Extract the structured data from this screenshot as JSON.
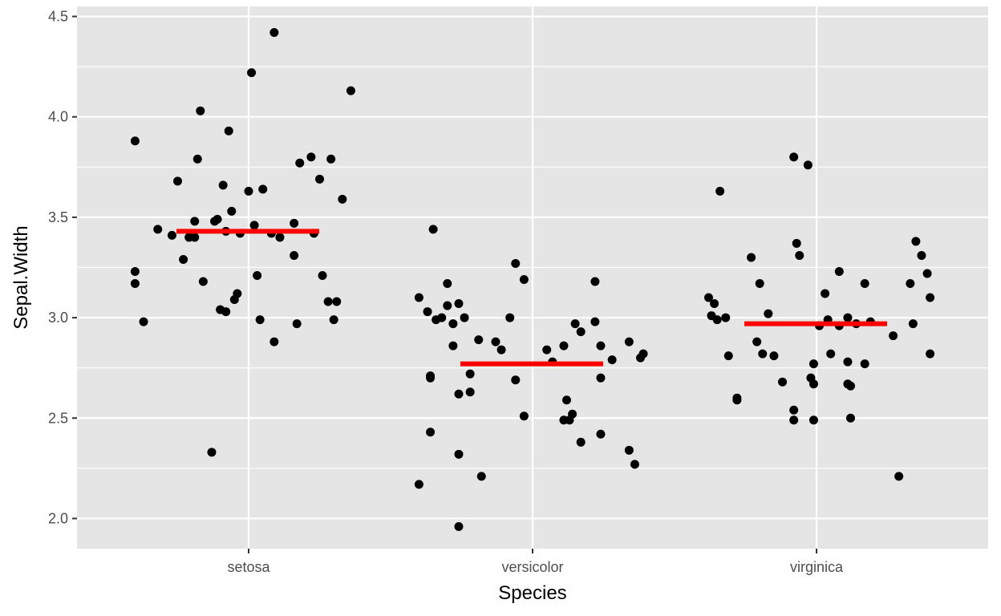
{
  "chart_data": {
    "type": "scatter",
    "title": "",
    "xlabel": "Species",
    "ylabel": "Sepal.Width",
    "categories": [
      "setosa",
      "versicolor",
      "virginica"
    ],
    "ylim": [
      1.85,
      4.55
    ],
    "yticks": [
      "2.0",
      "2.5",
      "3.0",
      "3.5",
      "4.0",
      "4.5"
    ],
    "ytick_values": [
      2.0,
      2.5,
      3.0,
      3.5,
      4.0,
      4.5
    ],
    "grid": true,
    "legend": "none",
    "colors": {
      "panel": "#e5e5e5",
      "grid": "#ffffff",
      "points": "#000000",
      "mean_line": "#ff0000"
    },
    "series": [
      {
        "category": "setosa",
        "mean": 3.43,
        "points": [
          [
            -0.4,
            3.88
          ],
          [
            -0.4,
            3.23
          ],
          [
            -0.4,
            3.17
          ],
          [
            -0.37,
            2.98
          ],
          [
            -0.32,
            3.44
          ],
          [
            -0.27,
            3.41
          ],
          [
            -0.25,
            3.68
          ],
          [
            -0.23,
            3.29
          ],
          [
            -0.21,
            3.4
          ],
          [
            -0.19,
            3.4
          ],
          [
            -0.19,
            3.48
          ],
          [
            -0.18,
            3.79
          ],
          [
            -0.17,
            4.03
          ],
          [
            -0.16,
            3.18
          ],
          [
            -0.13,
            2.33
          ],
          [
            -0.12,
            3.48
          ],
          [
            -0.11,
            3.49
          ],
          [
            -0.1,
            3.04
          ],
          [
            -0.09,
            3.66
          ],
          [
            -0.08,
            3.03
          ],
          [
            -0.08,
            3.43
          ],
          [
            -0.07,
            3.93
          ],
          [
            -0.06,
            3.53
          ],
          [
            -0.05,
            3.09
          ],
          [
            -0.04,
            3.12
          ],
          [
            -0.03,
            3.42
          ],
          [
            0.0,
            3.63
          ],
          [
            0.01,
            4.22
          ],
          [
            0.02,
            3.46
          ],
          [
            0.03,
            3.21
          ],
          [
            0.04,
            2.99
          ],
          [
            0.05,
            3.64
          ],
          [
            0.08,
            3.42
          ],
          [
            0.09,
            4.42
          ],
          [
            0.09,
            2.88
          ],
          [
            0.11,
            3.4
          ],
          [
            0.16,
            3.47
          ],
          [
            0.16,
            3.31
          ],
          [
            0.17,
            2.97
          ],
          [
            0.18,
            3.77
          ],
          [
            0.22,
            3.8
          ],
          [
            0.23,
            3.42
          ],
          [
            0.25,
            3.69
          ],
          [
            0.26,
            3.21
          ],
          [
            0.28,
            3.08
          ],
          [
            0.29,
            3.79
          ],
          [
            0.3,
            2.99
          ],
          [
            0.31,
            3.08
          ],
          [
            0.33,
            3.59
          ],
          [
            0.36,
            4.13
          ]
        ]
      },
      {
        "category": "versicolor",
        "mean": 2.77,
        "points": [
          [
            -0.4,
            2.17
          ],
          [
            -0.4,
            3.1
          ],
          [
            -0.37,
            3.03
          ],
          [
            -0.36,
            2.71
          ],
          [
            -0.36,
            2.7
          ],
          [
            -0.36,
            2.43
          ],
          [
            -0.35,
            3.44
          ],
          [
            -0.34,
            2.99
          ],
          [
            -0.32,
            3.0
          ],
          [
            -0.3,
            3.17
          ],
          [
            -0.3,
            3.06
          ],
          [
            -0.28,
            2.97
          ],
          [
            -0.28,
            2.86
          ],
          [
            -0.26,
            2.32
          ],
          [
            -0.26,
            3.07
          ],
          [
            -0.26,
            2.62
          ],
          [
            -0.26,
            1.96
          ],
          [
            -0.24,
            3.0
          ],
          [
            -0.22,
            2.72
          ],
          [
            -0.22,
            2.63
          ],
          [
            -0.19,
            2.89
          ],
          [
            -0.18,
            2.21
          ],
          [
            -0.13,
            2.88
          ],
          [
            -0.11,
            2.84
          ],
          [
            -0.08,
            3.0
          ],
          [
            -0.06,
            3.27
          ],
          [
            -0.06,
            2.69
          ],
          [
            -0.03,
            3.19
          ],
          [
            -0.03,
            2.51
          ],
          [
            0.05,
            2.84
          ],
          [
            0.07,
            2.78
          ],
          [
            0.11,
            2.49
          ],
          [
            0.11,
            2.86
          ],
          [
            0.12,
            2.59
          ],
          [
            0.13,
            2.49
          ],
          [
            0.14,
            2.52
          ],
          [
            0.15,
            2.97
          ],
          [
            0.17,
            2.38
          ],
          [
            0.17,
            2.93
          ],
          [
            0.22,
            2.98
          ],
          [
            0.22,
            3.18
          ],
          [
            0.24,
            2.86
          ],
          [
            0.24,
            2.42
          ],
          [
            0.24,
            2.7
          ],
          [
            0.28,
            2.79
          ],
          [
            0.34,
            2.34
          ],
          [
            0.34,
            2.88
          ],
          [
            0.36,
            2.27
          ],
          [
            0.38,
            2.8
          ],
          [
            0.39,
            2.82
          ]
        ]
      },
      {
        "category": "virginica",
        "mean": 2.97,
        "points": [
          [
            -0.38,
            3.1
          ],
          [
            -0.37,
            3.01
          ],
          [
            -0.36,
            3.07
          ],
          [
            -0.35,
            2.99
          ],
          [
            -0.34,
            3.63
          ],
          [
            -0.32,
            3.0
          ],
          [
            -0.31,
            2.81
          ],
          [
            -0.28,
            2.59
          ],
          [
            -0.28,
            2.6
          ],
          [
            -0.23,
            3.3
          ],
          [
            -0.21,
            2.88
          ],
          [
            -0.2,
            3.17
          ],
          [
            -0.19,
            2.82
          ],
          [
            -0.17,
            3.02
          ],
          [
            -0.15,
            2.81
          ],
          [
            -0.08,
            3.8
          ],
          [
            -0.07,
            3.37
          ],
          [
            -0.08,
            2.54
          ],
          [
            -0.08,
            2.49
          ],
          [
            -0.06,
            3.31
          ],
          [
            -0.03,
            3.76
          ],
          [
            -0.02,
            2.7
          ],
          [
            -0.01,
            2.77
          ],
          [
            -0.01,
            2.67
          ],
          [
            -0.01,
            2.49
          ],
          [
            0.01,
            2.96
          ],
          [
            0.03,
            3.12
          ],
          [
            0.04,
            2.99
          ],
          [
            0.05,
            2.82
          ],
          [
            0.08,
            2.96
          ],
          [
            0.08,
            3.23
          ],
          [
            0.11,
            3.0
          ],
          [
            0.11,
            2.78
          ],
          [
            0.11,
            2.67
          ],
          [
            0.12,
            2.66
          ],
          [
            0.12,
            2.5
          ],
          [
            0.14,
            2.97
          ],
          [
            0.17,
            3.17
          ],
          [
            0.17,
            2.77
          ],
          [
            0.19,
            2.98
          ],
          [
            0.27,
            2.91
          ],
          [
            0.29,
            2.21
          ],
          [
            0.33,
            3.17
          ],
          [
            0.34,
            2.97
          ],
          [
            0.35,
            3.38
          ],
          [
            0.37,
            3.31
          ],
          [
            0.39,
            3.22
          ],
          [
            0.4,
            3.1
          ],
          [
            0.4,
            2.82
          ],
          [
            -0.12,
            2.68
          ]
        ]
      }
    ]
  }
}
